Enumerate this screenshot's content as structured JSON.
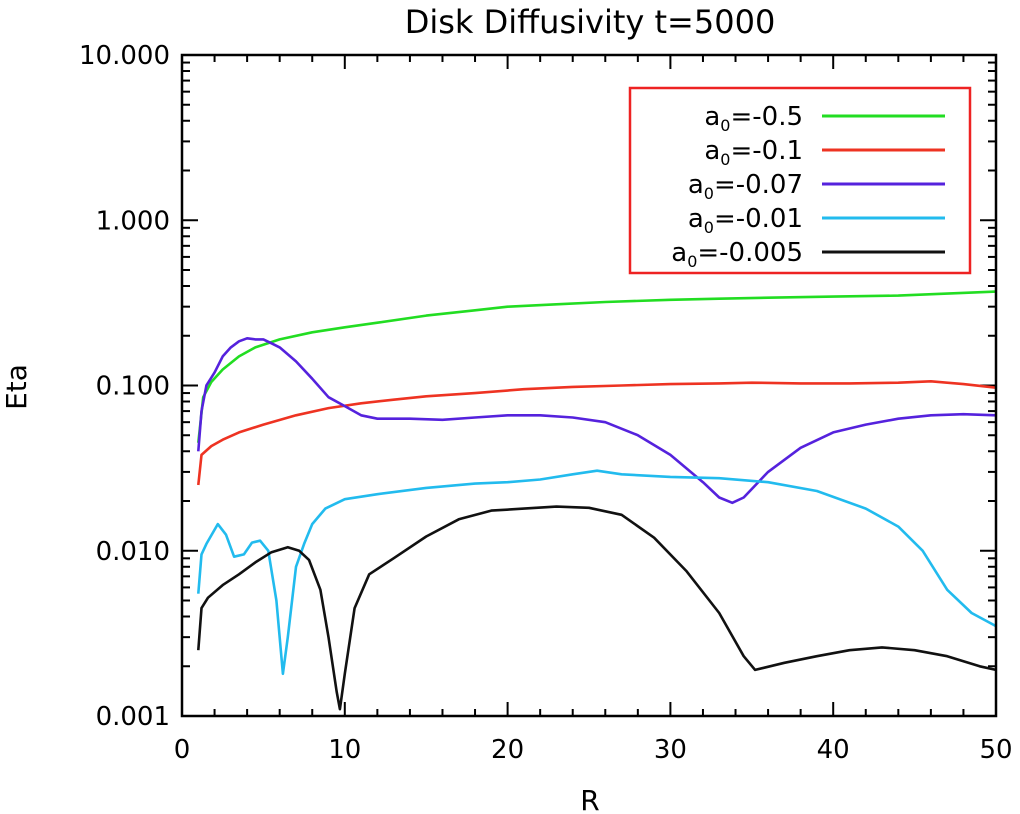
{
  "chart_data": {
    "type": "line",
    "title": "Disk Diffusivity t=5000",
    "xlabel": "R",
    "ylabel": "Eta",
    "xlim": [
      0,
      50
    ],
    "ylim": [
      0.001,
      10
    ],
    "yscale": "log",
    "xticks": [
      0,
      10,
      20,
      30,
      40,
      50
    ],
    "xtick_labels": [
      "0",
      "10",
      "20",
      "30",
      "40",
      "50"
    ],
    "yticks": [
      0.001,
      0.01,
      0.1,
      1,
      10
    ],
    "ytick_labels": [
      "0.001",
      "0.010",
      "0.100",
      "1.000",
      "10.000"
    ],
    "grid": false,
    "legend_position": "top-right",
    "series": [
      {
        "name": "a0=-0.5",
        "label_main": "a",
        "label_sub": "0",
        "label_rest": "=-0.5",
        "color": "#22dd22",
        "points": [
          [
            1.0,
            0.045
          ],
          [
            1.3,
            0.085
          ],
          [
            1.8,
            0.105
          ],
          [
            2.5,
            0.125
          ],
          [
            3.5,
            0.15
          ],
          [
            4.5,
            0.17
          ],
          [
            6,
            0.19
          ],
          [
            8,
            0.21
          ],
          [
            10,
            0.225
          ],
          [
            12,
            0.24
          ],
          [
            15,
            0.265
          ],
          [
            18,
            0.285
          ],
          [
            20,
            0.3
          ],
          [
            23,
            0.31
          ],
          [
            26,
            0.32
          ],
          [
            30,
            0.33
          ],
          [
            33,
            0.335
          ],
          [
            36,
            0.34
          ],
          [
            40,
            0.345
          ],
          [
            44,
            0.35
          ],
          [
            47,
            0.36
          ],
          [
            50,
            0.37
          ]
        ]
      },
      {
        "name": "a0=-0.1",
        "label_main": "a",
        "label_sub": "0",
        "label_rest": "=-0.1",
        "color": "#ee3322",
        "points": [
          [
            1.0,
            0.025
          ],
          [
            1.2,
            0.038
          ],
          [
            1.8,
            0.043
          ],
          [
            2.5,
            0.047
          ],
          [
            3.5,
            0.052
          ],
          [
            5,
            0.058
          ],
          [
            7,
            0.066
          ],
          [
            9,
            0.073
          ],
          [
            11,
            0.078
          ],
          [
            13,
            0.082
          ],
          [
            15,
            0.086
          ],
          [
            18,
            0.09
          ],
          [
            21,
            0.095
          ],
          [
            24,
            0.098
          ],
          [
            27,
            0.1
          ],
          [
            30,
            0.102
          ],
          [
            33,
            0.103
          ],
          [
            35,
            0.104
          ],
          [
            38,
            0.103
          ],
          [
            41,
            0.103
          ],
          [
            44,
            0.104
          ],
          [
            46,
            0.106
          ],
          [
            48,
            0.102
          ],
          [
            50,
            0.097
          ]
        ]
      },
      {
        "name": "a0=-0.07",
        "label_main": "a",
        "label_sub": "0",
        "label_rest": "=-0.07",
        "color": "#5522dd",
        "points": [
          [
            1.0,
            0.04
          ],
          [
            1.2,
            0.07
          ],
          [
            1.5,
            0.1
          ],
          [
            2,
            0.12
          ],
          [
            2.5,
            0.15
          ],
          [
            3,
            0.17
          ],
          [
            3.5,
            0.185
          ],
          [
            4,
            0.193
          ],
          [
            4.5,
            0.19
          ],
          [
            5,
            0.19
          ],
          [
            5.5,
            0.18
          ],
          [
            6,
            0.17
          ],
          [
            7,
            0.14
          ],
          [
            8,
            0.11
          ],
          [
            9,
            0.085
          ],
          [
            10,
            0.075
          ],
          [
            11,
            0.066
          ],
          [
            12,
            0.063
          ],
          [
            14,
            0.063
          ],
          [
            16,
            0.062
          ],
          [
            18,
            0.064
          ],
          [
            20,
            0.066
          ],
          [
            22,
            0.066
          ],
          [
            24,
            0.064
          ],
          [
            26,
            0.06
          ],
          [
            28,
            0.05
          ],
          [
            30,
            0.038
          ],
          [
            32,
            0.026
          ],
          [
            33,
            0.021
          ],
          [
            33.8,
            0.0195
          ],
          [
            34.5,
            0.021
          ],
          [
            36,
            0.03
          ],
          [
            38,
            0.042
          ],
          [
            40,
            0.052
          ],
          [
            42,
            0.058
          ],
          [
            44,
            0.063
          ],
          [
            46,
            0.066
          ],
          [
            48,
            0.067
          ],
          [
            50,
            0.066
          ]
        ]
      },
      {
        "name": "a0=-0.01",
        "label_main": "a",
        "label_sub": "0",
        "label_rest": "=-0.01",
        "color": "#22bbee",
        "points": [
          [
            1.0,
            0.0055
          ],
          [
            1.2,
            0.0095
          ],
          [
            1.5,
            0.011
          ],
          [
            2.2,
            0.0145
          ],
          [
            2.7,
            0.0125
          ],
          [
            3.2,
            0.0092
          ],
          [
            3.8,
            0.0095
          ],
          [
            4.3,
            0.0112
          ],
          [
            4.8,
            0.0115
          ],
          [
            5.3,
            0.01
          ],
          [
            5.8,
            0.005
          ],
          [
            6.2,
            0.0018
          ],
          [
            6.5,
            0.003
          ],
          [
            7,
            0.008
          ],
          [
            7.5,
            0.011
          ],
          [
            8,
            0.0145
          ],
          [
            8.8,
            0.018
          ],
          [
            10,
            0.0205
          ],
          [
            12,
            0.022
          ],
          [
            15,
            0.024
          ],
          [
            18,
            0.0255
          ],
          [
            20,
            0.026
          ],
          [
            22,
            0.027
          ],
          [
            24,
            0.029
          ],
          [
            25.5,
            0.0305
          ],
          [
            27,
            0.029
          ],
          [
            30,
            0.028
          ],
          [
            33,
            0.0275
          ],
          [
            36,
            0.026
          ],
          [
            39,
            0.023
          ],
          [
            42,
            0.018
          ],
          [
            44,
            0.014
          ],
          [
            45.5,
            0.01
          ],
          [
            47,
            0.0058
          ],
          [
            48.5,
            0.0042
          ],
          [
            50,
            0.0035
          ]
        ]
      },
      {
        "name": "a0=-0.005",
        "label_main": "a",
        "label_sub": "0",
        "label_rest": "=-0.005",
        "color": "#111111",
        "points": [
          [
            1.0,
            0.0025
          ],
          [
            1.2,
            0.0045
          ],
          [
            1.6,
            0.0052
          ],
          [
            2.5,
            0.0062
          ],
          [
            3.5,
            0.0072
          ],
          [
            4.5,
            0.0085
          ],
          [
            5.5,
            0.0098
          ],
          [
            6.5,
            0.0105
          ],
          [
            7.2,
            0.01
          ],
          [
            7.8,
            0.0088
          ],
          [
            8.5,
            0.0058
          ],
          [
            9.0,
            0.003
          ],
          [
            9.5,
            0.0014
          ],
          [
            9.7,
            0.0011
          ],
          [
            10.0,
            0.0018
          ],
          [
            10.6,
            0.0045
          ],
          [
            11.5,
            0.0072
          ],
          [
            13,
            0.009
          ],
          [
            15,
            0.0122
          ],
          [
            17,
            0.0155
          ],
          [
            19,
            0.0175
          ],
          [
            21,
            0.018
          ],
          [
            23,
            0.0185
          ],
          [
            25,
            0.0182
          ],
          [
            27,
            0.0165
          ],
          [
            29,
            0.012
          ],
          [
            31,
            0.0075
          ],
          [
            33,
            0.0042
          ],
          [
            34.5,
            0.0023
          ],
          [
            35.2,
            0.0019
          ],
          [
            37,
            0.0021
          ],
          [
            39,
            0.0023
          ],
          [
            41,
            0.0025
          ],
          [
            43,
            0.0026
          ],
          [
            45,
            0.0025
          ],
          [
            47,
            0.0023
          ],
          [
            49,
            0.002
          ],
          [
            50,
            0.0019
          ]
        ]
      }
    ]
  }
}
